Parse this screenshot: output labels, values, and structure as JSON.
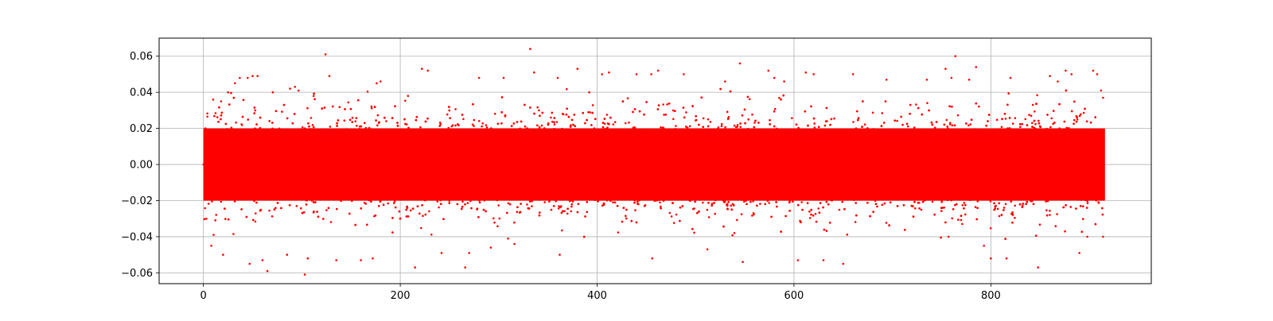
{
  "chart_data": {
    "type": "scatter",
    "title": "",
    "xlabel": "",
    "ylabel": "",
    "xlim": [
      -45,
      963
    ],
    "ylim": [
      -0.066,
      0.07
    ],
    "grid": true,
    "marker_color": "#ff0000",
    "x_ticks": [
      {
        "value": 0,
        "label": "0"
      },
      {
        "value": 200,
        "label": "200"
      },
      {
        "value": 400,
        "label": "400"
      },
      {
        "value": 600,
        "label": "600"
      },
      {
        "value": 800,
        "label": "800"
      }
    ],
    "y_ticks": [
      {
        "value": 0.06,
        "label": "0.06"
      },
      {
        "value": 0.04,
        "label": "0.04"
      },
      {
        "value": 0.02,
        "label": "0.02"
      },
      {
        "value": 0.0,
        "label": "0.00"
      },
      {
        "value": -0.02,
        "label": "−0.02"
      },
      {
        "value": -0.04,
        "label": "−0.04"
      },
      {
        "value": -0.06,
        "label": "−0.06"
      }
    ],
    "series": [
      {
        "x_range": [
          0,
          916
        ],
        "core_band": [
          -0.02,
          0.02
        ],
        "spread_band": [
          -0.04,
          0.04
        ],
        "points": [
          [
            0,
            0.0
          ],
          [
            2,
            0.02
          ],
          [
            3,
            -0.03
          ],
          [
            10,
            0.036
          ],
          [
            18,
            0.035
          ],
          [
            25,
            0.04
          ],
          [
            32,
            0.045
          ],
          [
            37,
            0.048
          ],
          [
            45,
            0.048
          ],
          [
            50,
            0.049
          ],
          [
            55,
            0.049
          ],
          [
            8,
            -0.045
          ],
          [
            20,
            -0.05
          ],
          [
            47,
            -0.055
          ],
          [
            65,
            -0.059
          ],
          [
            60,
            -0.053
          ],
          [
            85,
            -0.05
          ],
          [
            88,
            0.042
          ],
          [
            93,
            0.043
          ],
          [
            103,
            -0.061
          ],
          [
            106,
            -0.052
          ],
          [
            112,
            0.038
          ],
          [
            124,
            0.061
          ],
          [
            128,
            0.049
          ],
          [
            135,
            -0.053
          ],
          [
            160,
            -0.053
          ],
          [
            172,
            -0.052
          ],
          [
            176,
            0.045
          ],
          [
            180,
            0.046
          ],
          [
            222,
            0.053
          ],
          [
            228,
            0.052
          ],
          [
            215,
            -0.057
          ],
          [
            242,
            -0.049
          ],
          [
            266,
            -0.057
          ],
          [
            270,
            -0.049
          ],
          [
            280,
            0.048
          ],
          [
            292,
            -0.046
          ],
          [
            305,
            0.048
          ],
          [
            316,
            -0.044
          ],
          [
            332,
            0.064
          ],
          [
            336,
            0.051
          ],
          [
            360,
            0.048
          ],
          [
            362,
            -0.05
          ],
          [
            380,
            0.053
          ],
          [
            392,
            0.04
          ],
          [
            405,
            0.05
          ],
          [
            412,
            0.051
          ],
          [
            440,
            0.05
          ],
          [
            455,
            0.05
          ],
          [
            462,
            0.052
          ],
          [
            456,
            -0.052
          ],
          [
            488,
            0.05
          ],
          [
            512,
            -0.047
          ],
          [
            530,
            0.046
          ],
          [
            545,
            0.056
          ],
          [
            548,
            -0.054
          ],
          [
            574,
            0.052
          ],
          [
            580,
            0.048
          ],
          [
            590,
            0.046
          ],
          [
            604,
            -0.053
          ],
          [
            612,
            0.051
          ],
          [
            620,
            0.05
          ],
          [
            630,
            -0.053
          ],
          [
            650,
            -0.055
          ],
          [
            660,
            0.05
          ],
          [
            694,
            0.047
          ],
          [
            735,
            0.047
          ],
          [
            754,
            0.053
          ],
          [
            760,
            0.048
          ],
          [
            764,
            0.06
          ],
          [
            778,
            0.047
          ],
          [
            785,
            0.054
          ],
          [
            793,
            -0.045
          ],
          [
            800,
            -0.052
          ],
          [
            816,
            -0.052
          ],
          [
            820,
            0.048
          ],
          [
            848,
            -0.057
          ],
          [
            860,
            0.049
          ],
          [
            868,
            0.046
          ],
          [
            876,
            0.052
          ],
          [
            882,
            0.05
          ],
          [
            890,
            -0.049
          ],
          [
            904,
            0.052
          ],
          [
            908,
            0.05
          ],
          [
            912,
            0.041
          ],
          [
            898,
            -0.04
          ],
          [
            914,
            -0.04
          ],
          [
            914,
            0.037
          ]
        ]
      }
    ]
  }
}
